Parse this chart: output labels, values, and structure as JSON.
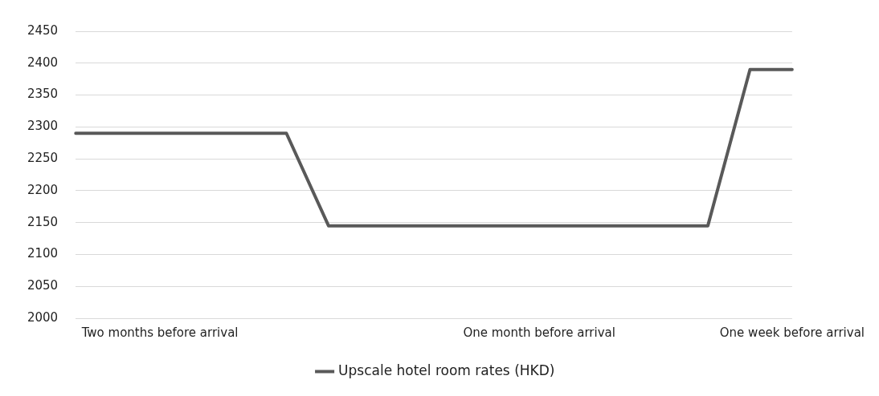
{
  "chart_data": {
    "type": "line",
    "categories": [
      null,
      null,
      "Two months before arrival",
      null,
      null,
      null,
      null,
      null,
      null,
      null,
      null,
      "One month before arrival",
      null,
      null,
      null,
      null,
      null,
      "One week before arrival"
    ],
    "series": [
      {
        "name": "Upscale hotel room rates (HKD)",
        "color": "#595959",
        "values": [
          2290,
          2290,
          2290,
          2290,
          2290,
          2290,
          2145,
          2145,
          2145,
          2145,
          2145,
          2145,
          2145,
          2145,
          2145,
          2145,
          2390,
          2390
        ]
      }
    ],
    "ylim": [
      2000,
      2450
    ],
    "yticks": [
      2000,
      2050,
      2100,
      2150,
      2200,
      2250,
      2300,
      2350,
      2400,
      2450
    ],
    "grid": "y",
    "legend": "bottom",
    "marker": "none",
    "line_style": "solid"
  }
}
